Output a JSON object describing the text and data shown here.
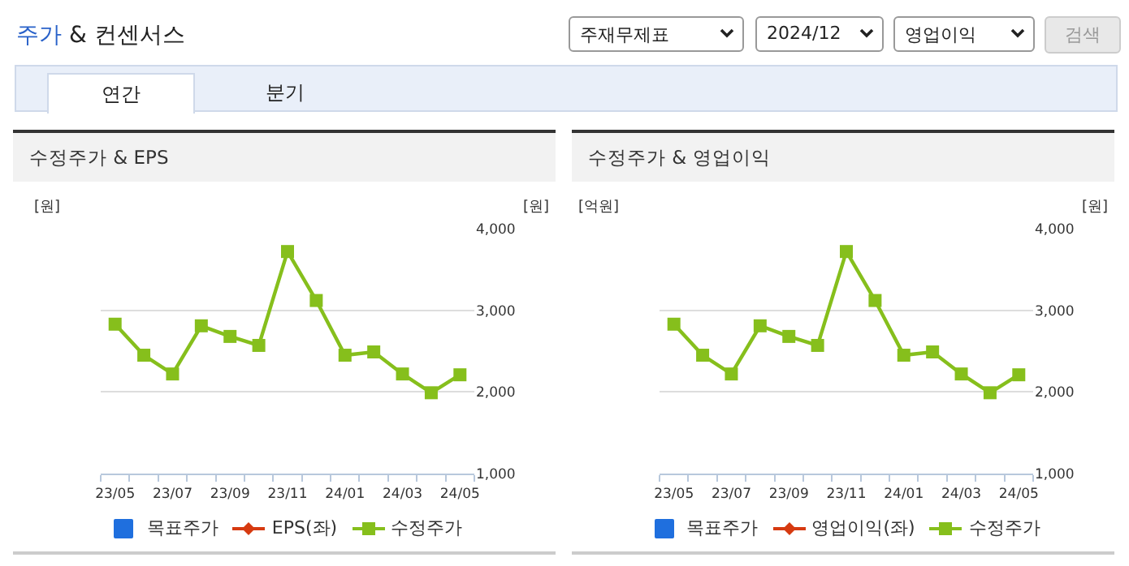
{
  "chart_data": [
    {
      "type": "other",
      "title": "주가 & 컨센서스",
      "annotations": [
        "주재무제표",
        "2024/12",
        "영업이익",
        "검색",
        "연간",
        "분기"
      ]
    },
    {
      "type": "line",
      "title": "수정주가 & EPS",
      "ylabel": "[원]",
      "y2label": "[원]",
      "categories": [
        "23/05",
        null,
        "23/07",
        null,
        "23/09",
        null,
        "23/11",
        null,
        "24/01",
        null,
        "24/03",
        null,
        "24/05"
      ],
      "y2lim": [
        1000,
        4000
      ],
      "y2ticks": [
        {
          "value": 1000,
          "label": "1,000"
        },
        {
          "value": 2000,
          "label": "2,000"
        },
        {
          "value": 3000,
          "label": "3,000"
        },
        {
          "value": 4000,
          "label": "4,000"
        }
      ],
      "grid": "y",
      "legend": "bottom",
      "marker": "square",
      "series": [
        {
          "name": "목표주가",
          "type": "bar",
          "color": "#1f6fde",
          "axis": "y2",
          "values": [
            null,
            null,
            null,
            null,
            null,
            null,
            null,
            null,
            null,
            null,
            null,
            null,
            null
          ]
        },
        {
          "name": "EPS(좌)",
          "type": "line",
          "color": "#d63a10",
          "marker": "diamond",
          "values": [
            null,
            null,
            null,
            null,
            null,
            null,
            null,
            null,
            null,
            null,
            null,
            null,
            null
          ]
        },
        {
          "name": "수정주가",
          "type": "line",
          "color": "#86bf1c",
          "axis": "y2",
          "values": [
            2830,
            2450,
            2220,
            2810,
            2680,
            2570,
            3720,
            3120,
            2450,
            2490,
            2220,
            1990,
            2210
          ]
        }
      ]
    },
    {
      "type": "line",
      "title": "수정주가 & 영업이익",
      "ylabel": "[억원]",
      "y2label": "[원]",
      "categories": [
        "23/05",
        null,
        "23/07",
        null,
        "23/09",
        null,
        "23/11",
        null,
        "24/01",
        null,
        "24/03",
        null,
        "24/05"
      ],
      "y2lim": [
        1000,
        4000
      ],
      "y2ticks": [
        {
          "value": 1000,
          "label": "1,000"
        },
        {
          "value": 2000,
          "label": "2,000"
        },
        {
          "value": 3000,
          "label": "3,000"
        },
        {
          "value": 4000,
          "label": "4,000"
        }
      ],
      "grid": "y",
      "legend": "bottom",
      "marker": "square",
      "series": [
        {
          "name": "목표주가",
          "type": "bar",
          "color": "#1f6fde",
          "axis": "y2",
          "values": [
            null,
            null,
            null,
            null,
            null,
            null,
            null,
            null,
            null,
            null,
            null,
            null,
            null
          ]
        },
        {
          "name": "영업이익(좌)",
          "type": "line",
          "color": "#d63a10",
          "marker": "diamond",
          "values": [
            null,
            null,
            null,
            null,
            null,
            null,
            null,
            null,
            null,
            null,
            null,
            null,
            null
          ]
        },
        {
          "name": "수정주가",
          "type": "line",
          "color": "#86bf1c",
          "axis": "y2",
          "values": [
            2830,
            2450,
            2220,
            2810,
            2680,
            2570,
            3720,
            3120,
            2450,
            2490,
            2220,
            1990,
            2210
          ]
        }
      ]
    }
  ]
}
